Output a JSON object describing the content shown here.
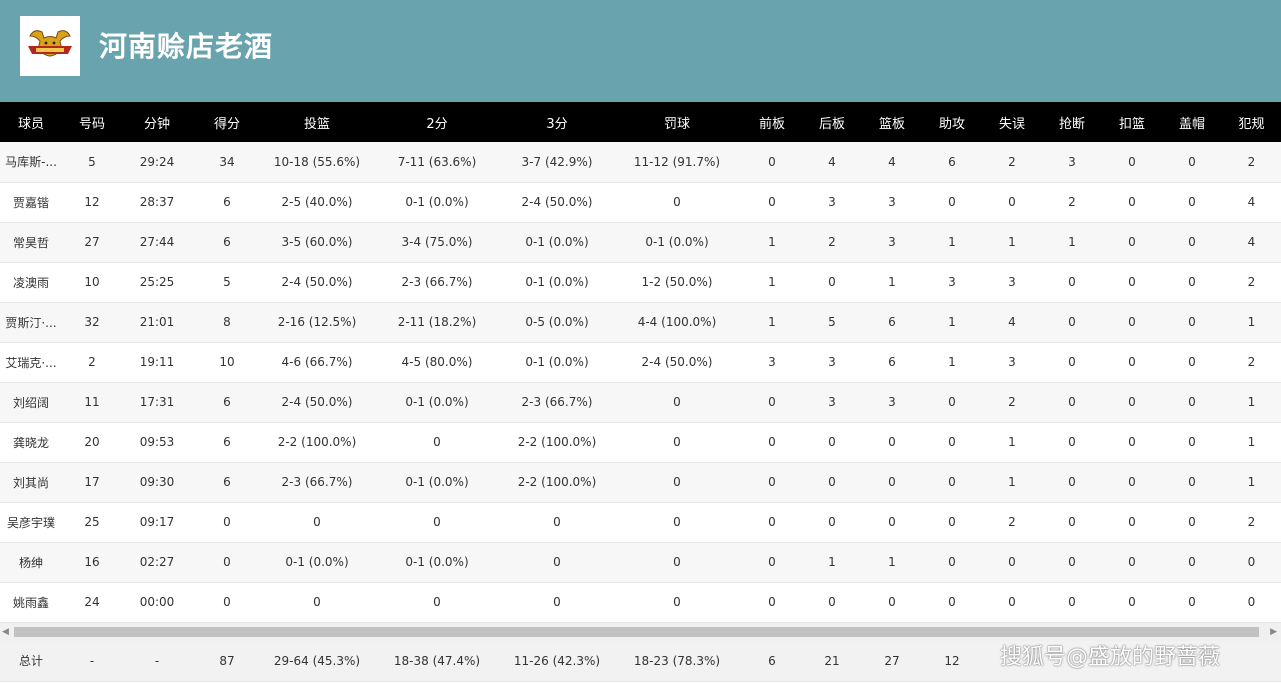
{
  "team": {
    "name": "河南赊店老酒",
    "logo_icon": "bull-logo-icon"
  },
  "columns": [
    "球员",
    "号码",
    "分钟",
    "得分",
    "投篮",
    "2分",
    "3分",
    "罚球",
    "前板",
    "后板",
    "篮板",
    "助攻",
    "失误",
    "抢断",
    "扣篮",
    "盖帽",
    "犯规"
  ],
  "rows": [
    [
      "马库斯-...",
      "5",
      "29:24",
      "34",
      "10-18 (55.6%)",
      "7-11 (63.6%)",
      "3-7 (42.9%)",
      "11-12 (91.7%)",
      "0",
      "4",
      "4",
      "6",
      "2",
      "3",
      "0",
      "0",
      "2"
    ],
    [
      "贾嘉锴",
      "12",
      "28:37",
      "6",
      "2-5 (40.0%)",
      "0-1 (0.0%)",
      "2-4 (50.0%)",
      "0",
      "0",
      "3",
      "3",
      "0",
      "0",
      "2",
      "0",
      "0",
      "4"
    ],
    [
      "常昊哲",
      "27",
      "27:44",
      "6",
      "3-5 (60.0%)",
      "3-4 (75.0%)",
      "0-1 (0.0%)",
      "0-1 (0.0%)",
      "1",
      "2",
      "3",
      "1",
      "1",
      "1",
      "0",
      "0",
      "4"
    ],
    [
      "凌澳雨",
      "10",
      "25:25",
      "5",
      "2-4 (50.0%)",
      "2-3 (66.7%)",
      "0-1 (0.0%)",
      "1-2 (50.0%)",
      "1",
      "0",
      "1",
      "3",
      "3",
      "0",
      "0",
      "0",
      "2"
    ],
    [
      "贾斯汀·...",
      "32",
      "21:01",
      "8",
      "2-16 (12.5%)",
      "2-11 (18.2%)",
      "0-5 (0.0%)",
      "4-4 (100.0%)",
      "1",
      "5",
      "6",
      "1",
      "4",
      "0",
      "0",
      "0",
      "1"
    ],
    [
      "艾瑞克·...",
      "2",
      "19:11",
      "10",
      "4-6 (66.7%)",
      "4-5 (80.0%)",
      "0-1 (0.0%)",
      "2-4 (50.0%)",
      "3",
      "3",
      "6",
      "1",
      "3",
      "0",
      "0",
      "0",
      "2"
    ],
    [
      "刘绍阔",
      "11",
      "17:31",
      "6",
      "2-4 (50.0%)",
      "0-1 (0.0%)",
      "2-3 (66.7%)",
      "0",
      "0",
      "3",
      "3",
      "0",
      "2",
      "0",
      "0",
      "0",
      "1"
    ],
    [
      "龚晓龙",
      "20",
      "09:53",
      "6",
      "2-2 (100.0%)",
      "0",
      "2-2 (100.0%)",
      "0",
      "0",
      "0",
      "0",
      "0",
      "1",
      "0",
      "0",
      "0",
      "1"
    ],
    [
      "刘其尚",
      "17",
      "09:30",
      "6",
      "2-3 (66.7%)",
      "0-1 (0.0%)",
      "2-2 (100.0%)",
      "0",
      "0",
      "0",
      "0",
      "0",
      "1",
      "0",
      "0",
      "0",
      "1"
    ],
    [
      "吴彦宇璞",
      "25",
      "09:17",
      "0",
      "0",
      "0",
      "0",
      "0",
      "0",
      "0",
      "0",
      "0",
      "2",
      "0",
      "0",
      "0",
      "2"
    ],
    [
      "杨绅",
      "16",
      "02:27",
      "0",
      "0-1 (0.0%)",
      "0-1 (0.0%)",
      "0",
      "0",
      "0",
      "1",
      "1",
      "0",
      "0",
      "0",
      "0",
      "0",
      "0"
    ],
    [
      "姚雨鑫",
      "24",
      "00:00",
      "0",
      "0",
      "0",
      "0",
      "0",
      "0",
      "0",
      "0",
      "0",
      "0",
      "0",
      "0",
      "0",
      "0"
    ]
  ],
  "totals": [
    "总计",
    "-",
    "-",
    "87",
    "29-64 (45.3%)",
    "18-38 (47.4%)",
    "11-26 (42.3%)",
    "18-23 (78.3%)",
    "6",
    "21",
    "27",
    "12",
    "",
    "",
    "",
    "",
    ""
  ],
  "scrollbar": {
    "left_arrow": "◀",
    "right_arrow": "▶"
  },
  "watermark": "搜狐号@盛放的野蔷薇",
  "colors": {
    "header_bg": "#69a3ae",
    "column_header_bg": "#000000"
  }
}
